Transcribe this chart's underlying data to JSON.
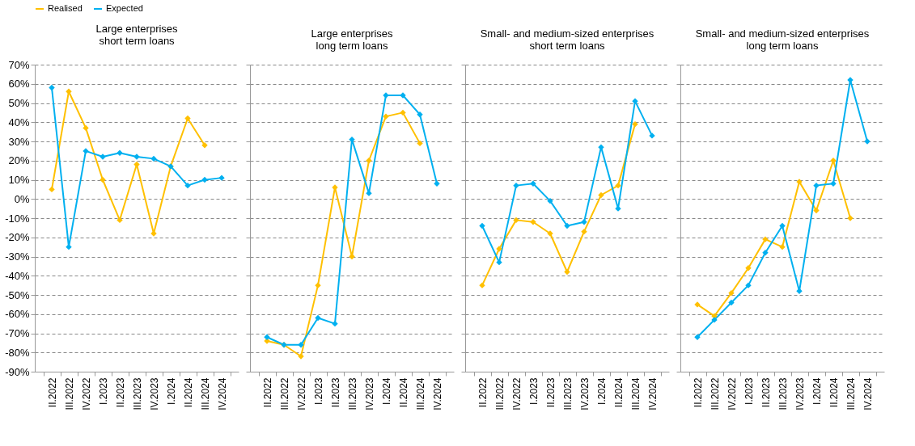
{
  "chart_data": [
    {
      "type": "line",
      "title": "Large enterprises\nshort term loans",
      "categories": [
        "II.2022",
        "III.2022",
        "IV.2022",
        "I.2023",
        "II.2023",
        "III.2023",
        "IV.2023",
        "I.2024",
        "II.2024",
        "III.2024",
        "IV.2024"
      ],
      "series": [
        {
          "name": "Realised",
          "color": "#ffc000",
          "values": [
            5,
            56,
            37,
            10,
            -11,
            18,
            -18,
            17,
            42,
            28,
            null
          ]
        },
        {
          "name": "Expected",
          "color": "#00b0f0",
          "values": [
            58,
            -25,
            25,
            22,
            24,
            22,
            21,
            17,
            7,
            10,
            11
          ]
        }
      ],
      "ylim": [
        -90,
        70
      ],
      "yticks": [
        {
          "value": -90,
          "label": "-90%"
        },
        {
          "value": -80,
          "label": "-80%"
        },
        {
          "value": -70,
          "label": "-70%"
        },
        {
          "value": -60,
          "label": "-60%"
        },
        {
          "value": -50,
          "label": "-50%"
        },
        {
          "value": -40,
          "label": "-40%"
        },
        {
          "value": -30,
          "label": "-30%"
        },
        {
          "value": -20,
          "label": "-20%"
        },
        {
          "value": -10,
          "label": "-10%"
        },
        {
          "value": 0,
          "label": "0%"
        },
        {
          "value": 10,
          "label": "10%"
        },
        {
          "value": 20,
          "label": "20%"
        },
        {
          "value": 30,
          "label": "30%"
        },
        {
          "value": 40,
          "label": "40%"
        },
        {
          "value": 50,
          "label": "50%"
        },
        {
          "value": 60,
          "label": "60%"
        },
        {
          "value": 70,
          "label": "70%"
        }
      ],
      "grid": "y",
      "legend": "top left",
      "marker": "diamond"
    },
    {
      "type": "line",
      "title": "Large enterprises\nlong term loans",
      "categories": [
        "II.2022",
        "III.2022",
        "IV.2022",
        "I.2023",
        "II.2023",
        "III.2023",
        "IV.2023",
        "I.2024",
        "II.2024",
        "III.2024",
        "IV.2024"
      ],
      "series": [
        {
          "name": "Realised",
          "color": "#ffc000",
          "values": [
            -74,
            -76,
            -82,
            -45,
            6,
            -30,
            20,
            43,
            45,
            29,
            null
          ]
        },
        {
          "name": "Expected",
          "color": "#00b0f0",
          "values": [
            -72,
            -76,
            -76,
            -62,
            -65,
            31,
            3,
            54,
            54,
            44,
            8
          ]
        }
      ],
      "ylim": [
        -90,
        70
      ],
      "yticks": [
        -90,
        -80,
        -70,
        -60,
        -50,
        -40,
        -30,
        -20,
        -10,
        0,
        10,
        20,
        30,
        40,
        50,
        60,
        70
      ],
      "grid": "y",
      "marker": "diamond",
      "tick_labels": "x"
    },
    {
      "type": "line",
      "title": "Small- and medium-sized enterprises\nshort term loans",
      "categories": [
        "II.2022",
        "III.2022",
        "IV.2022",
        "I.2023",
        "II.2023",
        "III.2023",
        "IV.2023",
        "I.2024",
        "II.2024",
        "III.2024",
        "IV.2024"
      ],
      "series": [
        {
          "name": "Realised",
          "color": "#ffc000",
          "values": [
            -45,
            -26,
            -11,
            -12,
            -18,
            -38,
            -17,
            2,
            7,
            39,
            null
          ]
        },
        {
          "name": "Expected",
          "color": "#00b0f0",
          "values": [
            -14,
            -33,
            7,
            8,
            -1,
            -14,
            -12,
            27,
            -5,
            51,
            33
          ]
        }
      ],
      "ylim": [
        -90,
        70
      ],
      "yticks": [
        -90,
        -80,
        -70,
        -60,
        -50,
        -40,
        -30,
        -20,
        -10,
        0,
        10,
        20,
        30,
        40,
        50,
        60,
        70
      ],
      "grid": "y",
      "marker": "diamond",
      "tick_labels": "x"
    },
    {
      "type": "line",
      "title": "Small- and medium-sized enterprises\nlong term loans",
      "categories": [
        "II.2022",
        "III.2022",
        "IV.2022",
        "I.2023",
        "II.2023",
        "III.2023",
        "IV.2023",
        "I.2024",
        "II.2024",
        "III.2024",
        "IV.2024"
      ],
      "series": [
        {
          "name": "Realised",
          "color": "#ffc000",
          "values": [
            -55,
            -61,
            -49,
            -36,
            -21,
            -25,
            9,
            -6,
            20,
            -10,
            null
          ]
        },
        {
          "name": "Expected",
          "color": "#00b0f0",
          "values": [
            -72,
            -63,
            -54,
            -45,
            -28,
            -14,
            -48,
            7,
            8,
            62,
            30
          ]
        }
      ],
      "ylim": [
        -90,
        70
      ],
      "yticks": [
        -90,
        -80,
        -70,
        -60,
        -50,
        -40,
        -30,
        -20,
        -10,
        0,
        10,
        20,
        30,
        40,
        50,
        60,
        70
      ],
      "grid": "y",
      "marker": "diamond",
      "tick_labels": "x"
    }
  ]
}
